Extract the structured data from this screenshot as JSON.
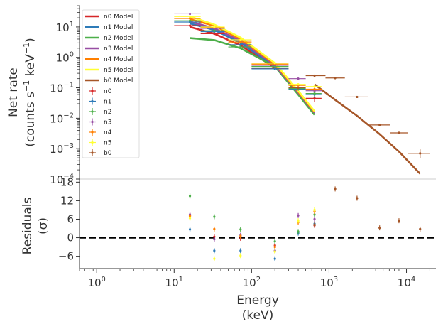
{
  "chart_data": [
    {
      "type": "line",
      "panel": "spectrum",
      "ylabel_line1": "Net rate",
      "ylabel_line2": "(counts s",
      "ylabel_sup1": "−1",
      "ylabel_mid": " keV",
      "ylabel_sup2": "−1",
      "ylabel_end": ")",
      "yscale": "log",
      "xscale": "log",
      "xlim": [
        0.6,
        24000
      ],
      "ylim": [
        0.0001,
        50
      ],
      "y_ticks": [
        {
          "value": 10,
          "base": "10",
          "exp": "1"
        },
        {
          "value": 1,
          "base": "10",
          "exp": "0"
        },
        {
          "value": 0.1,
          "base": "10",
          "exp": "−1"
        },
        {
          "value": 0.01,
          "base": "10",
          "exp": "−2"
        },
        {
          "value": 0.001,
          "base": "10",
          "exp": "−3"
        },
        {
          "value": 0.0001,
          "base": "10",
          "exp": "−4"
        }
      ],
      "legend_position": "top-left",
      "model_series": [
        {
          "name": "n0 Model",
          "color": "#d62728",
          "x": [
            16,
            33,
            72,
            200
          ],
          "y": [
            10,
            6,
            2.5,
            0.45
          ]
        },
        {
          "name": "n1 Model",
          "color": "#2e7bb8",
          "x": [
            16,
            33,
            72,
            200
          ],
          "y": [
            13,
            8,
            3.0,
            0.5
          ]
        },
        {
          "name": "n2 Model",
          "color": "#4daf4a",
          "x": [
            16,
            33,
            72,
            200,
            400,
            650
          ],
          "y": [
            4.3,
            3.7,
            2.0,
            0.5,
            0.06,
            0.013
          ]
        },
        {
          "name": "n3 Model",
          "color": "#984ea3",
          "x": [
            16,
            33,
            72,
            200,
            400,
            650
          ],
          "y": [
            15,
            9,
            3.5,
            0.55,
            0.07,
            0.015
          ]
        },
        {
          "name": "n4 Model",
          "color": "#ff7f00",
          "x": [
            16,
            33,
            72,
            200,
            400,
            650
          ],
          "y": [
            18,
            11,
            4.0,
            0.6,
            0.075,
            0.016
          ]
        },
        {
          "name": "n5 Model",
          "color": "#ffff33",
          "x": [
            16,
            33,
            72,
            200,
            400,
            650
          ],
          "y": [
            22,
            12,
            4.5,
            0.65,
            0.08,
            0.017
          ]
        },
        {
          "name": "b0 Model",
          "color": "#a65628",
          "x": [
            650,
            1200,
            2300,
            4500,
            8000,
            15000
          ],
          "y": [
            0.13,
            0.04,
            0.012,
            0.003,
            0.0008,
            0.00015
          ]
        }
      ],
      "data_series": [
        {
          "name": "n0",
          "color": "#d62728",
          "points": [
            {
              "x": 16,
              "xlo": 10,
              "xhi": 22,
              "y": 11,
              "ylo": 10,
              "yhi": 12
            },
            {
              "x": 33,
              "xlo": 22,
              "xhi": 45,
              "y": 6,
              "ylo": 5.6,
              "yhi": 6.4
            },
            {
              "x": 72,
              "xlo": 50,
              "xhi": 100,
              "y": 2.6,
              "ylo": 2.4,
              "yhi": 2.8
            },
            {
              "x": 200,
              "xlo": 100,
              "xhi": 300,
              "y": 0.43,
              "ylo": 0.4,
              "yhi": 0.46
            },
            {
              "x": 650,
              "xlo": 500,
              "xhi": 800,
              "y": 0.045,
              "ylo": 0.035,
              "yhi": 0.055
            }
          ]
        },
        {
          "name": "n1",
          "color": "#2e7bb8",
          "points": [
            {
              "x": 16,
              "xlo": 10,
              "xhi": 22,
              "y": 14.5,
              "ylo": 13.5,
              "yhi": 15.5
            },
            {
              "x": 33,
              "xlo": 22,
              "xhi": 45,
              "y": 7,
              "ylo": 6.6,
              "yhi": 7.4
            },
            {
              "x": 72,
              "xlo": 50,
              "xhi": 100,
              "y": 2.6,
              "ylo": 2.4,
              "yhi": 2.8
            },
            {
              "x": 200,
              "xlo": 100,
              "xhi": 300,
              "y": 0.42,
              "ylo": 0.39,
              "yhi": 0.45
            },
            {
              "x": 400,
              "xlo": 300,
              "xhi": 500,
              "y": 0.09,
              "ylo": 0.08,
              "yhi": 0.1
            },
            {
              "x": 650,
              "xlo": 500,
              "xhi": 800,
              "y": 0.06,
              "ylo": 0.05,
              "yhi": 0.07
            }
          ]
        },
        {
          "name": "n2",
          "color": "#4daf4a",
          "points": [
            {
              "x": 16,
              "xlo": 10,
              "xhi": 22,
              "y": 16,
              "ylo": 15,
              "yhi": 17
            },
            {
              "x": 33,
              "xlo": 22,
              "xhi": 45,
              "y": 7.5,
              "ylo": 7,
              "yhi": 8
            },
            {
              "x": 72,
              "xlo": 50,
              "xhi": 100,
              "y": 2.2,
              "ylo": 2,
              "yhi": 2.4
            },
            {
              "x": 200,
              "xlo": 100,
              "xhi": 300,
              "y": 0.5,
              "ylo": 0.46,
              "yhi": 0.54
            },
            {
              "x": 400,
              "xlo": 300,
              "xhi": 500,
              "y": 0.095,
              "ylo": 0.085,
              "yhi": 0.105
            },
            {
              "x": 650,
              "xlo": 500,
              "xhi": 800,
              "y": 0.065,
              "ylo": 0.055,
              "yhi": 0.075
            }
          ]
        },
        {
          "name": "n3",
          "color": "#984ea3",
          "points": [
            {
              "x": 16,
              "xlo": 10,
              "xhi": 22,
              "y": 27,
              "ylo": 25,
              "yhi": 29
            },
            {
              "x": 33,
              "xlo": 22,
              "xhi": 45,
              "y": 9,
              "ylo": 8.5,
              "yhi": 9.5
            },
            {
              "x": 72,
              "xlo": 50,
              "xhi": 100,
              "y": 3.5,
              "ylo": 3.2,
              "yhi": 3.8
            },
            {
              "x": 200,
              "xlo": 100,
              "xhi": 300,
              "y": 0.55,
              "ylo": 0.5,
              "yhi": 0.6
            },
            {
              "x": 400,
              "xlo": 300,
              "xhi": 500,
              "y": 0.2,
              "ylo": 0.18,
              "yhi": 0.22
            },
            {
              "x": 650,
              "xlo": 500,
              "xhi": 800,
              "y": 0.08,
              "ylo": 0.07,
              "yhi": 0.09
            }
          ]
        },
        {
          "name": "n4",
          "color": "#ff7f00",
          "points": [
            {
              "x": 16,
              "xlo": 10,
              "xhi": 22,
              "y": 19,
              "ylo": 18,
              "yhi": 20
            },
            {
              "x": 33,
              "xlo": 22,
              "xhi": 45,
              "y": 9.5,
              "ylo": 9,
              "yhi": 10
            },
            {
              "x": 72,
              "xlo": 50,
              "xhi": 100,
              "y": 3.2,
              "ylo": 3,
              "yhi": 3.4
            },
            {
              "x": 200,
              "xlo": 100,
              "xhi": 300,
              "y": 0.6,
              "ylo": 0.56,
              "yhi": 0.64
            },
            {
              "x": 400,
              "xlo": 300,
              "xhi": 500,
              "y": 0.12,
              "ylo": 0.11,
              "yhi": 0.13
            },
            {
              "x": 650,
              "xlo": 500,
              "xhi": 800,
              "y": 0.09,
              "ylo": 0.08,
              "yhi": 0.1
            }
          ]
        },
        {
          "name": "n5",
          "color": "#ffff33",
          "points": [
            {
              "x": 16,
              "xlo": 10,
              "xhi": 22,
              "y": 22,
              "ylo": 20,
              "yhi": 24
            },
            {
              "x": 33,
              "xlo": 22,
              "xhi": 45,
              "y": 10,
              "ylo": 9.5,
              "yhi": 10.5
            },
            {
              "x": 72,
              "xlo": 50,
              "xhi": 100,
              "y": 3.8,
              "ylo": 3.5,
              "yhi": 4.1
            },
            {
              "x": 200,
              "xlo": 100,
              "xhi": 300,
              "y": 0.65,
              "ylo": 0.6,
              "yhi": 0.7
            },
            {
              "x": 400,
              "xlo": 300,
              "xhi": 500,
              "y": 0.13,
              "ylo": 0.12,
              "yhi": 0.14
            },
            {
              "x": 650,
              "xlo": 500,
              "xhi": 800,
              "y": 0.11,
              "ylo": 0.1,
              "yhi": 0.12
            }
          ]
        },
        {
          "name": "b0",
          "color": "#a65628",
          "points": [
            {
              "x": 400,
              "xlo": 300,
              "xhi": 500,
              "y": 0.1,
              "ylo": 0.09,
              "yhi": 0.11
            },
            {
              "x": 650,
              "xlo": 500,
              "xhi": 900,
              "y": 0.25,
              "ylo": 0.23,
              "yhi": 0.27
            },
            {
              "x": 1200,
              "xlo": 900,
              "xhi": 1600,
              "y": 0.21,
              "ylo": 0.19,
              "yhi": 0.23
            },
            {
              "x": 2300,
              "xlo": 1600,
              "xhi": 3200,
              "y": 0.05,
              "ylo": 0.046,
              "yhi": 0.054
            },
            {
              "x": 4500,
              "xlo": 3200,
              "xhi": 6200,
              "y": 0.006,
              "ylo": 0.0055,
              "yhi": 0.0065
            },
            {
              "x": 8000,
              "xlo": 6200,
              "xhi": 10500,
              "y": 0.0033,
              "ylo": 0.003,
              "yhi": 0.0036
            },
            {
              "x": 15000,
              "xlo": 10500,
              "xhi": 20000,
              "y": 0.0007,
              "ylo": 0.0005,
              "yhi": 0.00095
            }
          ]
        }
      ]
    },
    {
      "type": "scatter",
      "panel": "residuals",
      "ylabel_line1": "Residuals",
      "ylabel_line2": "(σ)",
      "xlabel_line1": "Energy",
      "xlabel_line2": "(keV)",
      "xscale": "log",
      "xlim": [
        0.6,
        24000
      ],
      "ylim": [
        -10,
        19
      ],
      "y_ticks": [
        18,
        12,
        6,
        0,
        -6
      ],
      "y_tick_labels": [
        "18",
        "12",
        "6",
        "0",
        "−6"
      ],
      "x_ticks": [
        {
          "value": 1,
          "base": "10",
          "exp": "0"
        },
        {
          "value": 10,
          "base": "10",
          "exp": "1"
        },
        {
          "value": 100,
          "base": "10",
          "exp": "2"
        },
        {
          "value": 1000,
          "base": "10",
          "exp": "3"
        },
        {
          "value": 10000,
          "base": "10",
          "exp": "4"
        }
      ],
      "zero_line": 0,
      "series": [
        {
          "name": "n0",
          "color": "#d62728",
          "x": [
            16,
            33,
            72,
            200,
            650
          ],
          "y": [
            7.2,
            0.3,
            -0.2,
            -2.5,
            4.0
          ],
          "err": 0.8
        },
        {
          "name": "n1",
          "color": "#2e7bb8",
          "x": [
            16,
            33,
            72,
            200,
            400,
            650
          ],
          "y": [
            2.7,
            -4.2,
            -4.2,
            -6.8,
            1.5,
            4.5
          ],
          "err": 0.8
        },
        {
          "name": "n2",
          "color": "#4daf4a",
          "x": [
            16,
            33,
            72,
            200,
            400,
            650
          ],
          "y": [
            13.5,
            6.8,
            2.7,
            -1.2,
            2.0,
            7.5
          ],
          "err": 0.8
        },
        {
          "name": "n3",
          "color": "#984ea3",
          "x": [
            16,
            33,
            72,
            200,
            400,
            650
          ],
          "y": [
            7.5,
            -0.5,
            0.8,
            -4.2,
            7.2,
            6.0
          ],
          "err": 0.8
        },
        {
          "name": "n4",
          "color": "#ff7f00",
          "x": [
            16,
            33,
            72,
            200,
            400,
            650
          ],
          "y": [
            7.0,
            2.8,
            0.5,
            -3.0,
            5.0,
            8.5
          ],
          "err": 0.8
        },
        {
          "name": "n5",
          "color": "#ffff33",
          "x": [
            16,
            33,
            72,
            200,
            400,
            650
          ],
          "y": [
            6.3,
            -6.8,
            -5.8,
            -4.5,
            5.5,
            9.0
          ],
          "err": 0.8
        },
        {
          "name": "b0",
          "color": "#a65628",
          "x": [
            650,
            1200,
            2300,
            4500,
            8000,
            15000
          ],
          "y": [
            4.2,
            15.8,
            12.8,
            3.2,
            5.5,
            2.8
          ],
          "err": 0.8
        }
      ]
    }
  ]
}
